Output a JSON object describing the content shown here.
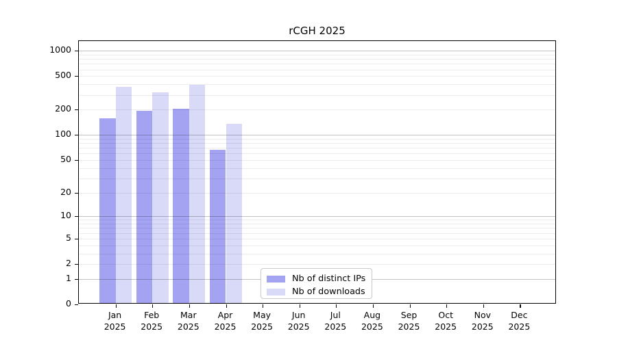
{
  "title": "rCGH 2025",
  "colors": {
    "ips": "#a3a3f2",
    "downloads": "#d9d9f8",
    "axis": "#000000",
    "grid_major": "rgba(0,0,0,0.24)",
    "grid_minor": "rgba(0,0,0,0.075)"
  },
  "legend": {
    "items": [
      {
        "label": "Nb of distinct IPs",
        "color_key": "ips"
      },
      {
        "label": "Nb of downloads",
        "color_key": "downloads"
      }
    ]
  },
  "y_axis": {
    "tick_values": [
      0,
      1,
      2,
      5,
      10,
      20,
      50,
      100,
      200,
      500,
      1000
    ],
    "tick_labels": [
      "0",
      "1",
      "2",
      "5",
      "10",
      "20",
      "50",
      "100",
      "200",
      "500",
      "1000"
    ]
  },
  "x_axis": {
    "months": [
      {
        "month": "Jan",
        "year": "2025"
      },
      {
        "month": "Feb",
        "year": "2025"
      },
      {
        "month": "Mar",
        "year": "2025"
      },
      {
        "month": "Apr",
        "year": "2025"
      },
      {
        "month": "May",
        "year": "2025"
      },
      {
        "month": "Jun",
        "year": "2025"
      },
      {
        "month": "Jul",
        "year": "2025"
      },
      {
        "month": "Aug",
        "year": "2025"
      },
      {
        "month": "Sep",
        "year": "2025"
      },
      {
        "month": "Oct",
        "year": "2025"
      },
      {
        "month": "Nov",
        "year": "2025"
      },
      {
        "month": "Dec",
        "year": "2025"
      }
    ]
  },
  "chart_data": {
    "type": "bar",
    "title": "rCGH 2025",
    "scale": "log10(value+1)",
    "categories": [
      "Jan 2025",
      "Feb 2025",
      "Mar 2025",
      "Apr 2025",
      "May 2025",
      "Jun 2025",
      "Jul 2025",
      "Aug 2025",
      "Sep 2025",
      "Oct 2025",
      "Nov 2025",
      "Dec 2025"
    ],
    "series": [
      {
        "name": "Nb of distinct IPs",
        "color": "#a3a3f2",
        "values": [
          151,
          187,
          199,
          64,
          0,
          0,
          0,
          0,
          0,
          0,
          0,
          0
        ]
      },
      {
        "name": "Nb of downloads",
        "color": "#d9d9f8",
        "values": [
          357,
          311,
          382,
          132,
          0,
          0,
          0,
          0,
          0,
          0,
          0,
          0
        ]
      }
    ],
    "xlabel": "",
    "ylabel": "",
    "ylim": [
      0,
      1300
    ],
    "yticks": [
      0,
      1,
      2,
      5,
      10,
      20,
      50,
      100,
      200,
      500,
      1000
    ],
    "grid": true,
    "grid_major_at": [
      1,
      10,
      100,
      1000
    ],
    "legend_position": "inside bottom-center"
  }
}
